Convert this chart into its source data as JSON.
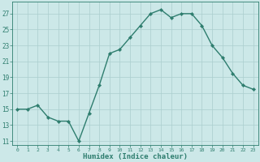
{
  "x": [
    0,
    1,
    2,
    3,
    4,
    5,
    6,
    7,
    8,
    9,
    10,
    11,
    12,
    13,
    14,
    15,
    16,
    17,
    18,
    19,
    20,
    21,
    22,
    23
  ],
  "y": [
    15,
    15,
    15.5,
    14,
    13.5,
    13.5,
    11,
    14.5,
    18,
    22,
    22.5,
    24,
    25.5,
    27,
    27.5,
    26.5,
    27,
    27,
    25.5,
    23,
    21.5,
    19.5,
    18.0,
    17.5
  ],
  "xlabel": "Humidex (Indice chaleur)",
  "ylim": [
    10.5,
    28.5
  ],
  "xlim": [
    -0.5,
    23.5
  ],
  "yticks": [
    11,
    13,
    15,
    17,
    19,
    21,
    23,
    25,
    27
  ],
  "xticks": [
    0,
    1,
    2,
    3,
    4,
    5,
    6,
    7,
    8,
    9,
    10,
    11,
    12,
    13,
    14,
    15,
    16,
    17,
    18,
    19,
    20,
    21,
    22,
    23
  ],
  "line_color": "#2e7d6e",
  "marker_color": "#2e7d6e",
  "bg_color": "#cce8e8",
  "grid_color": "#aacece",
  "tick_color": "#2e7d6e",
  "xlabel_color": "#2e7d6e",
  "marker": "D",
  "marker_size": 2.2,
  "line_width": 1.0
}
